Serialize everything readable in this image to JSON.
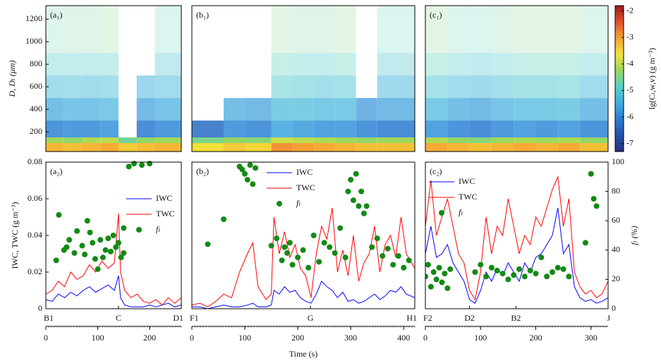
{
  "chart_data": [
    {
      "type": "heatmap",
      "label": "(a₁)",
      "ylabel": "D, Dₗ (μm)",
      "xlim": [
        0,
        261
      ],
      "ylim": [
        25,
        1320
      ],
      "yticks": [
        200,
        400,
        600,
        800,
        1000,
        1200
      ],
      "clim": [
        -7.3,
        -1.8
      ],
      "colormap": [
        "#2c2f7e",
        "#2452a8",
        "#2b7bd3",
        "#3fb0e0",
        "#56cfc8",
        "#9ad85b",
        "#f2e33a",
        "#f5a236",
        "#e0502a",
        "#9e1a1a"
      ],
      "x_bins": [
        0,
        35,
        70,
        105,
        140,
        175,
        210,
        261
      ],
      "y_bins": [
        25,
        100,
        150,
        300,
        500,
        700,
        900,
        1320
      ],
      "values": [
        [
          -3.2,
          -3.3,
          -3.2,
          -3.1,
          -3.4,
          -3.3,
          -3.2
        ],
        [
          -4.2,
          -4.3,
          -4.1,
          -4.0,
          -4.6,
          -4.3,
          -4.2
        ],
        [
          -6.0,
          -5.9,
          -5.9,
          -5.8,
          null,
          -6.1,
          -5.9
        ],
        [
          -5.6,
          -5.5,
          -5.5,
          -5.4,
          null,
          -5.7,
          -5.5
        ],
        [
          -5.3,
          -5.2,
          -5.3,
          -5.2,
          null,
          -5.5,
          -5.3
        ],
        [
          -5.0,
          -4.9,
          -5.0,
          -4.9,
          null,
          null,
          -5.1
        ],
        [
          -4.7,
          -4.6,
          -4.6,
          -4.5,
          null,
          null,
          -4.8
        ]
      ]
    },
    {
      "type": "heatmap",
      "label": "(b₁)",
      "xlim": [
        0,
        421
      ],
      "ylim": [
        25,
        1320
      ],
      "clim": [
        -7.3,
        -1.8
      ],
      "colormap": [
        "#2c2f7e",
        "#2452a8",
        "#2b7bd3",
        "#3fb0e0",
        "#56cfc8",
        "#9ad85b",
        "#f2e33a",
        "#f5a236",
        "#e0502a",
        "#9e1a1a"
      ],
      "x_bins": [
        0,
        60,
        100,
        150,
        190,
        230,
        270,
        310,
        350,
        421
      ],
      "y_bins": [
        25,
        100,
        150,
        300,
        500,
        700,
        900,
        1320
      ],
      "values": [
        [
          -3.6,
          -3.4,
          -3.5,
          -2.9,
          -3.0,
          -3.1,
          -3.2,
          -3.3,
          -3.3
        ],
        [
          -4.5,
          -4.3,
          -4.4,
          -3.9,
          -4.0,
          -4.1,
          -4.2,
          -4.3,
          -4.2
        ],
        [
          -6.3,
          -5.9,
          -6.0,
          -5.6,
          -5.7,
          -5.8,
          -5.8,
          -6.0,
          -6.1
        ],
        [
          null,
          -5.6,
          -5.7,
          -5.3,
          -5.3,
          -5.4,
          -5.4,
          -5.8,
          -5.7
        ],
        [
          null,
          null,
          null,
          -5.0,
          -5.1,
          -5.2,
          -5.1,
          null,
          -5.4
        ],
        [
          null,
          null,
          null,
          -4.8,
          -4.9,
          -4.9,
          -4.8,
          null,
          -5.1
        ],
        [
          null,
          null,
          null,
          -4.5,
          -4.6,
          -4.6,
          -4.5,
          null,
          -4.8
        ]
      ]
    },
    {
      "type": "heatmap",
      "label": "(c₁)",
      "xlim": [
        0,
        331
      ],
      "ylim": [
        25,
        1320
      ],
      "clim": [
        -7.3,
        -1.8
      ],
      "colormap": [
        "#2c2f7e",
        "#2452a8",
        "#2b7bd3",
        "#3fb0e0",
        "#56cfc8",
        "#9ad85b",
        "#f2e33a",
        "#f5a236",
        "#e0502a",
        "#9e1a1a"
      ],
      "x_bins": [
        0,
        40,
        80,
        120,
        160,
        200,
        240,
        280,
        331
      ],
      "y_bins": [
        25,
        100,
        150,
        300,
        500,
        700,
        900,
        1320
      ],
      "values": [
        [
          -3.1,
          -3.2,
          -3.3,
          -3.2,
          -3.1,
          -3.2,
          -3.1,
          -3.3
        ],
        [
          -4.1,
          -4.3,
          -4.4,
          -4.2,
          -4.1,
          -4.2,
          -4.1,
          -4.3
        ],
        [
          -5.8,
          -6.0,
          -6.1,
          -5.9,
          -5.8,
          -5.9,
          -5.8,
          -6.0
        ],
        [
          -5.4,
          -5.6,
          -5.7,
          -5.5,
          -5.4,
          -5.4,
          -5.3,
          -5.6
        ],
        [
          -5.1,
          -5.3,
          -5.4,
          -5.2,
          -5.1,
          -5.1,
          -5.0,
          -5.3
        ],
        [
          -4.8,
          -5.0,
          -5.1,
          -4.9,
          -4.8,
          -4.8,
          -4.8,
          -5.0
        ],
        [
          -4.5,
          -4.7,
          -4.8,
          -4.6,
          -4.5,
          -4.5,
          -4.5,
          -4.7
        ]
      ],
      "colorbar": {
        "label": "lg(Cₗ,w,v) (g m⁻³)",
        "ticks": [
          -2,
          -3,
          -4,
          -5,
          -6,
          -7
        ]
      }
    },
    {
      "type": "line",
      "label": "(a₂)",
      "ylabel": "IWC, TWC (g m⁻³)",
      "xlim": [
        0,
        261
      ],
      "xticks": [
        0,
        100,
        200
      ],
      "ylim": [
        0,
        0.08
      ],
      "yticks": [
        0,
        0.02,
        0.04,
        0.06,
        0.08
      ],
      "y2lim": [
        0,
        100
      ],
      "legend": "center right",
      "segments": [
        {
          "label": "B1",
          "time": 0
        },
        {
          "label": "C",
          "time": 140
        },
        {
          "label": "D1",
          "time": 261
        }
      ],
      "series": [
        {
          "name": "IWC",
          "color": "#0000ff",
          "style": "line",
          "x": [
            0,
            12,
            24,
            36,
            48,
            60,
            72,
            84,
            96,
            108,
            120,
            132,
            140,
            144,
            152,
            164,
            176,
            188,
            200,
            212,
            224,
            236,
            248,
            261
          ],
          "values": [
            0.005,
            0.004,
            0.008,
            0.006,
            0.009,
            0.007,
            0.01,
            0.012,
            0.009,
            0.011,
            0.013,
            0.01,
            0.018,
            0.006,
            0.002,
            0.001,
            0.001,
            0.001,
            0.002,
            0.001,
            0.002,
            0.003,
            0.001,
            0.002
          ]
        },
        {
          "name": "TWC",
          "color": "#ff0000",
          "style": "line",
          "x": [
            0,
            12,
            24,
            36,
            48,
            60,
            72,
            84,
            96,
            108,
            120,
            132,
            140,
            144,
            152,
            164,
            176,
            188,
            200,
            212,
            224,
            236,
            248,
            261
          ],
          "values": [
            0.008,
            0.01,
            0.015,
            0.012,
            0.02,
            0.016,
            0.018,
            0.024,
            0.02,
            0.026,
            0.022,
            0.025,
            0.052,
            0.02,
            0.01,
            0.006,
            0.008,
            0.004,
            0.003,
            0.005,
            0.002,
            0.006,
            0.003,
            0.006
          ]
        },
        {
          "name": "fₗ",
          "color": "#138a13",
          "style": "markers",
          "axis": "y2",
          "x": [
            20,
            25,
            35,
            40,
            45,
            55,
            60,
            70,
            75,
            80,
            85,
            90,
            95,
            100,
            105,
            110,
            115,
            120,
            125,
            130,
            135,
            140,
            145,
            150,
            150,
            160,
            170,
            185,
            200
          ],
          "values": [
            33,
            64,
            40,
            42,
            47,
            38,
            53,
            43,
            37,
            60,
            52,
            45,
            34,
            27,
            47,
            35,
            40,
            48,
            39,
            50,
            42,
            45,
            35,
            38,
            55,
            97,
            99,
            98,
            99
          ]
        }
      ]
    },
    {
      "type": "line",
      "label": "(b₂)",
      "xlabel": "Time (s)",
      "xlim": [
        0,
        421
      ],
      "xticks": [
        0,
        100,
        200,
        300,
        400
      ],
      "ylim": [
        0,
        0.08
      ],
      "y2lim": [
        0,
        100
      ],
      "legend": "upper center",
      "segments": [
        {
          "label": "F1",
          "time": 0
        },
        {
          "label": "G",
          "time": 224
        },
        {
          "label": "H1",
          "time": 421
        }
      ],
      "series": [
        {
          "name": "IWC",
          "color": "#0000ff",
          "style": "line",
          "x": [
            0,
            15,
            30,
            45,
            60,
            75,
            90,
            105,
            115,
            125,
            140,
            150,
            155,
            165,
            175,
            185,
            195,
            205,
            215,
            225,
            235,
            245,
            255,
            265,
            275,
            285,
            295,
            305,
            315,
            325,
            335,
            345,
            355,
            365,
            375,
            385,
            395,
            405,
            421
          ],
          "values": [
            0.001,
            0.001,
            0,
            0.001,
            0.002,
            0.001,
            0.001,
            0.002,
            0.003,
            0.001,
            0.001,
            0.002,
            0.01,
            0.008,
            0.012,
            0.009,
            0.01,
            0.006,
            0.004,
            0.003,
            0.008,
            0.015,
            0.012,
            0.01,
            0.006,
            0.009,
            0.004,
            0.005,
            0.003,
            0.004,
            0.006,
            0.008,
            0.005,
            0.007,
            0.01,
            0.009,
            0.012,
            0.008,
            0.006
          ]
        },
        {
          "name": "TWC",
          "color": "#ff0000",
          "style": "line",
          "x": [
            0,
            15,
            30,
            45,
            60,
            75,
            90,
            105,
            115,
            125,
            140,
            150,
            155,
            165,
            175,
            185,
            195,
            205,
            215,
            225,
            235,
            245,
            255,
            265,
            275,
            285,
            295,
            305,
            315,
            325,
            335,
            345,
            355,
            365,
            375,
            385,
            395,
            405,
            421
          ],
          "values": [
            0.002,
            0.003,
            0.001,
            0.004,
            0.008,
            0.006,
            0.02,
            0.03,
            0.036,
            0.012,
            0.005,
            0.008,
            0.05,
            0.03,
            0.042,
            0.028,
            0.035,
            0.022,
            0.018,
            0.006,
            0.03,
            0.045,
            0.038,
            0.055,
            0.02,
            0.032,
            0.018,
            0.04,
            0.015,
            0.025,
            0.03,
            0.045,
            0.02,
            0.035,
            0.04,
            0.028,
            0.05,
            0.03,
            0.022
          ]
        },
        {
          "name": "fₗ",
          "color": "#138a13",
          "style": "markers",
          "axis": "y2",
          "x": [
            30,
            60,
            90,
            95,
            100,
            105,
            110,
            115,
            120,
            150,
            160,
            170,
            175,
            180,
            185,
            190,
            200,
            210,
            220,
            230,
            240,
            250,
            260,
            270,
            280,
            290,
            295,
            300,
            305,
            310,
            315,
            320,
            325,
            330,
            340,
            350,
            360,
            370,
            380,
            390,
            400,
            410
          ],
          "values": [
            44,
            61,
            97,
            95,
            92,
            88,
            98,
            85,
            96,
            43,
            48,
            33,
            42,
            38,
            45,
            30,
            35,
            40,
            28,
            50,
            32,
            45,
            42,
            38,
            55,
            35,
            80,
            88,
            74,
            92,
            70,
            80,
            65,
            70,
            42,
            48,
            36,
            41,
            30,
            36,
            28,
            33
          ]
        }
      ]
    },
    {
      "type": "line",
      "label": "(c₂)",
      "y2label": "fₗ (%)",
      "xlim": [
        0,
        331
      ],
      "xticks": [
        0,
        100,
        200,
        300
      ],
      "ylim": [
        0,
        0.08
      ],
      "y2lim": [
        0,
        100
      ],
      "y2ticks": [
        0,
        20,
        40,
        60,
        80,
        100
      ],
      "legend": "upper left",
      "segments": [
        {
          "label": "F2",
          "time": 0
        },
        {
          "label": "D2",
          "time": 80
        },
        {
          "label": "B2",
          "time": 164
        },
        {
          "label": "J",
          "time": 331
        }
      ],
      "series": [
        {
          "name": "IWC",
          "color": "#0000ff",
          "style": "line",
          "x": [
            0,
            10,
            20,
            30,
            40,
            50,
            60,
            70,
            80,
            90,
            100,
            110,
            120,
            130,
            140,
            150,
            160,
            170,
            180,
            190,
            200,
            210,
            220,
            230,
            240,
            250,
            260,
            270,
            280,
            290,
            300,
            310,
            320,
            331
          ],
          "values": [
            0.03,
            0.045,
            0.028,
            0.03,
            0.035,
            0.025,
            0.02,
            0.015,
            0.005,
            0.003,
            0.01,
            0.02,
            0.015,
            0.022,
            0.018,
            0.025,
            0.02,
            0.015,
            0.025,
            0.02,
            0.028,
            0.03,
            0.035,
            0.04,
            0.055,
            0.03,
            0.035,
            0.012,
            0.006,
            0.004,
            0.005,
            0.003,
            0.004,
            0.006
          ]
        },
        {
          "name": "TWC",
          "color": "#ff0000",
          "style": "line",
          "x": [
            0,
            10,
            20,
            30,
            40,
            50,
            60,
            70,
            80,
            90,
            100,
            110,
            120,
            130,
            140,
            150,
            160,
            170,
            180,
            190,
            200,
            210,
            220,
            230,
            240,
            250,
            260,
            270,
            280,
            290,
            300,
            310,
            320,
            331
          ],
          "values": [
            0.045,
            0.07,
            0.04,
            0.05,
            0.06,
            0.045,
            0.03,
            0.025,
            0.01,
            0.005,
            0.02,
            0.05,
            0.03,
            0.045,
            0.04,
            0.06,
            0.045,
            0.03,
            0.04,
            0.035,
            0.05,
            0.045,
            0.055,
            0.065,
            0.072,
            0.045,
            0.06,
            0.02,
            0.012,
            0.008,
            0.01,
            0.006,
            0.008,
            0.015
          ]
        },
        {
          "name": "fₗ",
          "color": "#138a13",
          "style": "markers",
          "axis": "y2",
          "x": [
            0,
            5,
            10,
            15,
            20,
            25,
            30,
            35,
            40,
            45,
            90,
            100,
            110,
            120,
            130,
            140,
            150,
            160,
            170,
            180,
            190,
            200,
            210,
            220,
            230,
            240,
            250,
            260,
            290,
            300,
            305,
            310
          ],
          "values": [
            22,
            30,
            15,
            25,
            20,
            28,
            18,
            24,
            14,
            27,
            25,
            30,
            22,
            28,
            26,
            24,
            20,
            23,
            27,
            22,
            26,
            24,
            35,
            22,
            25,
            28,
            27,
            22,
            45,
            92,
            75,
            70
          ]
        }
      ]
    }
  ]
}
